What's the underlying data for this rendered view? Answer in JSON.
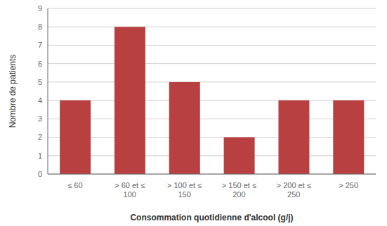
{
  "chart_data": {
    "type": "bar",
    "categories": [
      "≤ 60",
      "> 60 et ≤\n100",
      "> 100 et ≤\n150",
      "> 150 et ≤\n200",
      "> 200 et ≤\n250",
      "> 250"
    ],
    "values": [
      4,
      8,
      5,
      2,
      4,
      4
    ],
    "color": "#b94040",
    "xlabel": "Consommation  quotidienne d'alcool (g/j)",
    "ylabel": "Nombre de patients",
    "ylim": [
      0,
      9
    ],
    "yticks": [
      0,
      1,
      2,
      3,
      4,
      5,
      6,
      7,
      8,
      9
    ],
    "grid": true
  }
}
